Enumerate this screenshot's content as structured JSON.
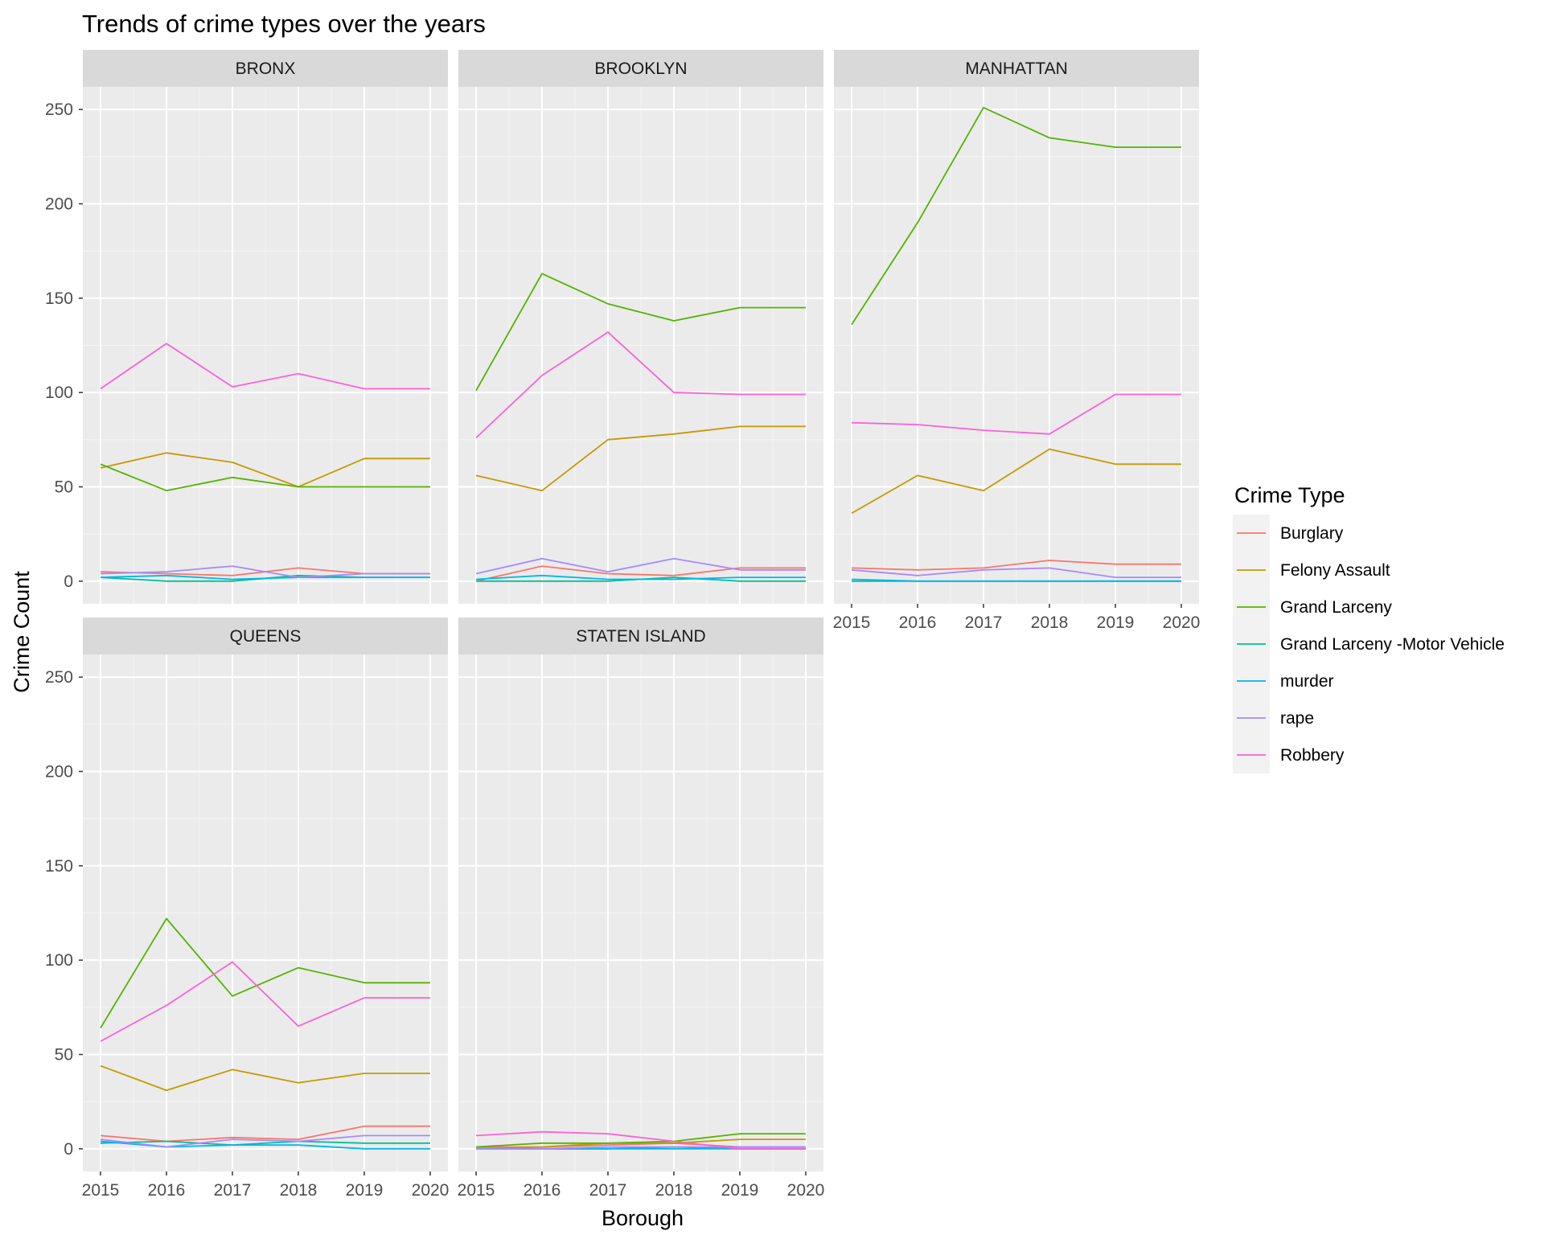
{
  "chart_data": {
    "type": "line",
    "title": "Trends of crime types over the years",
    "xlabel": "Borough",
    "ylabel": "Crime Count",
    "legend_title": "Crime Type",
    "legend_position": "right",
    "grid": true,
    "x": [
      2015,
      2016,
      2017,
      2018,
      2019,
      2020
    ],
    "ylim": [
      -12,
      262
    ],
    "yticks": [
      0,
      50,
      100,
      150,
      200,
      250
    ],
    "series_names": [
      "Burglary",
      "Felony Assault",
      "Grand Larceny",
      "Grand Larceny -Motor Vehicle",
      "murder",
      "rape",
      "Robbery"
    ],
    "colors": {
      "Burglary": "#F8766D",
      "Felony Assault": "#C49A00",
      "Grand Larceny": "#53B400",
      "Grand Larceny -Motor Vehicle": "#00C094",
      "murder": "#00B6EB",
      "rape": "#A58AFF",
      "Robbery": "#FB61D7"
    },
    "panels": [
      {
        "name": "BRONX",
        "series": [
          {
            "name": "Burglary",
            "values": [
              5,
              4,
              3,
              7,
              4,
              4
            ]
          },
          {
            "name": "Felony Assault",
            "values": [
              60,
              68,
              63,
              50,
              65,
              65
            ]
          },
          {
            "name": "Grand Larceny",
            "values": [
              62,
              48,
              55,
              50,
              50,
              50
            ]
          },
          {
            "name": "Grand Larceny -Motor Vehicle",
            "values": [
              2,
              0,
              0,
              3,
              2,
              2
            ]
          },
          {
            "name": "murder",
            "values": [
              2,
              3,
              1,
              2,
              2,
              2
            ]
          },
          {
            "name": "rape",
            "values": [
              4,
              5,
              8,
              2,
              4,
              4
            ]
          },
          {
            "name": "Robbery",
            "values": [
              102,
              126,
              103,
              110,
              102,
              102
            ]
          }
        ]
      },
      {
        "name": "BROOKLYN",
        "series": [
          {
            "name": "Burglary",
            "values": [
              0,
              8,
              4,
              3,
              7,
              7
            ]
          },
          {
            "name": "Felony Assault",
            "values": [
              56,
              48,
              75,
              78,
              82,
              82
            ]
          },
          {
            "name": "Grand Larceny",
            "values": [
              101,
              163,
              147,
              138,
              145,
              145
            ]
          },
          {
            "name": "Grand Larceny -Motor Vehicle",
            "values": [
              0,
              0,
              0,
              2,
              0,
              0
            ]
          },
          {
            "name": "murder",
            "values": [
              1,
              3,
              1,
              1,
              2,
              2
            ]
          },
          {
            "name": "rape",
            "values": [
              4,
              12,
              5,
              12,
              6,
              6
            ]
          },
          {
            "name": "Robbery",
            "values": [
              76,
              109,
              132,
              100,
              99,
              99
            ]
          }
        ]
      },
      {
        "name": "MANHATTAN",
        "series": [
          {
            "name": "Burglary",
            "values": [
              7,
              6,
              7,
              11,
              9,
              9
            ]
          },
          {
            "name": "Felony Assault",
            "values": [
              36,
              56,
              48,
              70,
              62,
              62
            ]
          },
          {
            "name": "Grand Larceny",
            "values": [
              136,
              190,
              251,
              235,
              230,
              230
            ]
          },
          {
            "name": "Grand Larceny -Motor Vehicle",
            "values": [
              0,
              0,
              0,
              0,
              0,
              0
            ]
          },
          {
            "name": "murder",
            "values": [
              1,
              0,
              0,
              0,
              0,
              0
            ]
          },
          {
            "name": "rape",
            "values": [
              6,
              3,
              6,
              7,
              2,
              2
            ]
          },
          {
            "name": "Robbery",
            "values": [
              84,
              83,
              80,
              78,
              99,
              99
            ]
          }
        ]
      },
      {
        "name": "QUEENS",
        "series": [
          {
            "name": "Burglary",
            "values": [
              7,
              4,
              6,
              5,
              12,
              12
            ]
          },
          {
            "name": "Felony Assault",
            "values": [
              44,
              31,
              42,
              35,
              40,
              40
            ]
          },
          {
            "name": "Grand Larceny",
            "values": [
              64,
              122,
              81,
              96,
              88,
              88
            ]
          },
          {
            "name": "Grand Larceny -Motor Vehicle",
            "values": [
              3,
              4,
              2,
              4,
              3,
              3
            ]
          },
          {
            "name": "murder",
            "values": [
              4,
              1,
              2,
              2,
              0,
              0
            ]
          },
          {
            "name": "rape",
            "values": [
              5,
              1,
              5,
              4,
              7,
              7
            ]
          },
          {
            "name": "Robbery",
            "values": [
              57,
              76,
              99,
              65,
              80,
              80
            ]
          }
        ]
      },
      {
        "name": "STATEN ISLAND",
        "series": [
          {
            "name": "Burglary",
            "values": [
              1,
              1,
              2,
              3,
              1,
              1
            ]
          },
          {
            "name": "Felony Assault",
            "values": [
              0,
              1,
              3,
              3,
              5,
              5
            ]
          },
          {
            "name": "Grand Larceny",
            "values": [
              1,
              3,
              3,
              4,
              8,
              8
            ]
          },
          {
            "name": "Grand Larceny -Motor Vehicle",
            "values": [
              0,
              0,
              0,
              1,
              0,
              0
            ]
          },
          {
            "name": "murder",
            "values": [
              0,
              0,
              0,
              0,
              0,
              0
            ]
          },
          {
            "name": "rape",
            "values": [
              0,
              0,
              1,
              1,
              1,
              1
            ]
          },
          {
            "name": "Robbery",
            "values": [
              7,
              9,
              8,
              4,
              0,
              0
            ]
          }
        ]
      }
    ]
  }
}
